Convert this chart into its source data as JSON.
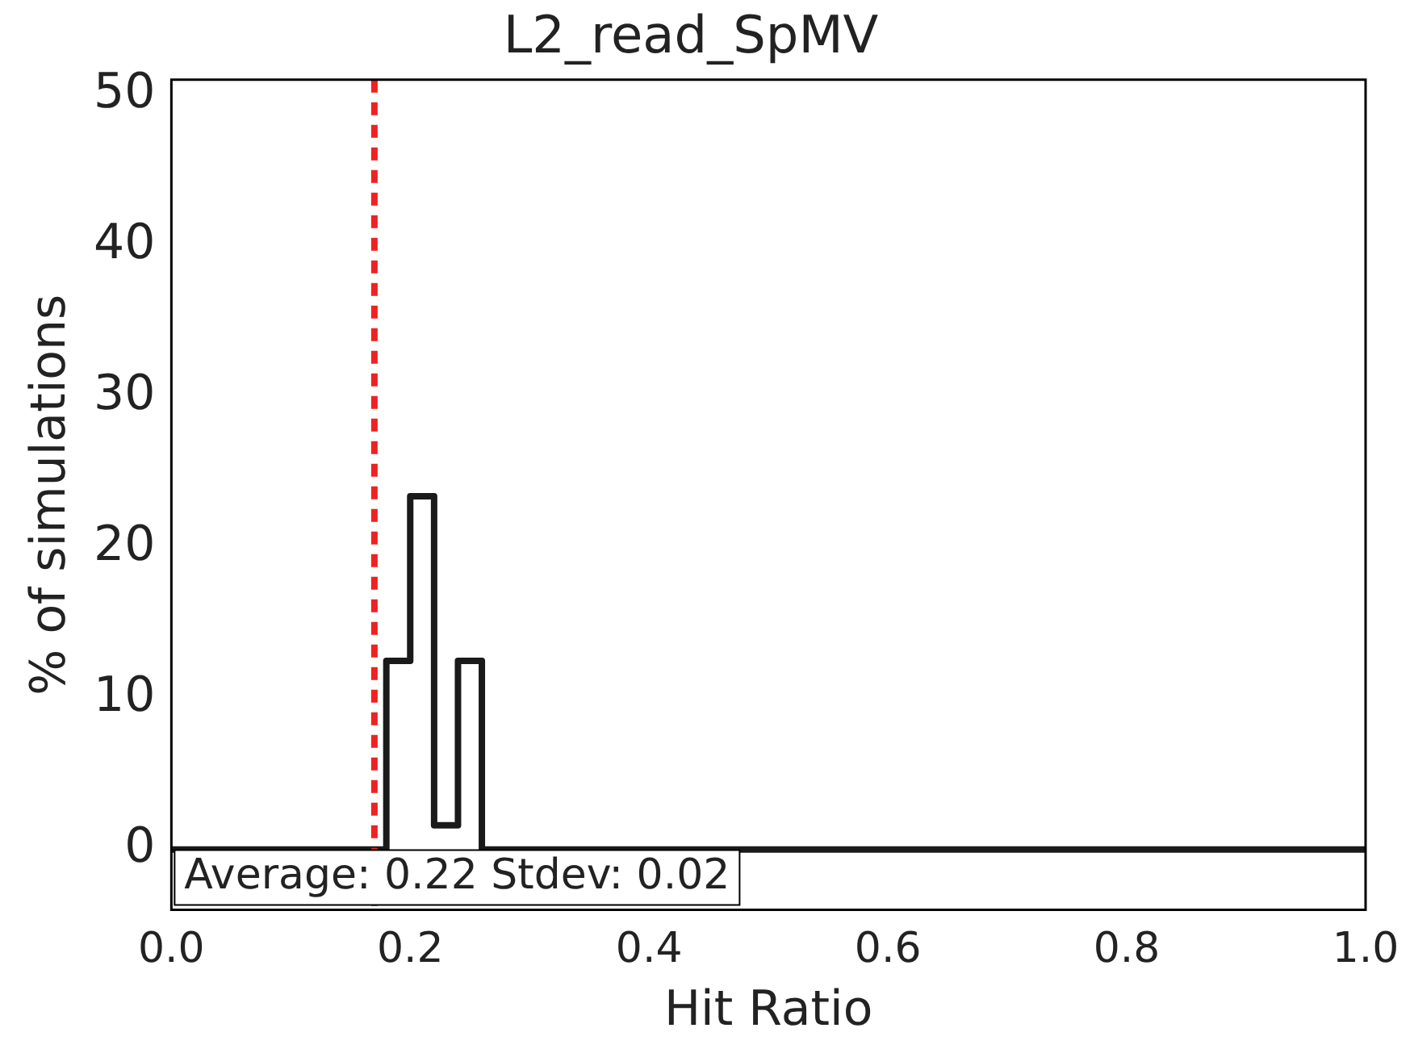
{
  "chart_data": {
    "type": "histogram",
    "title": "L2_read_SpMV",
    "xlabel": "Hit Ratio",
    "ylabel": "% of simulations",
    "bins": [
      0,
      0.18,
      0.2,
      0.22,
      0.24,
      0.26,
      1.0
    ],
    "values": [
      0,
      12.5,
      23.4,
      1.6,
      12.5,
      0
    ],
    "color": "#1a1a1a",
    "xlim": [
      0,
      1.0
    ],
    "xticks": [
      {
        "value": 0,
        "label": "0.0"
      },
      {
        "value": 0.2,
        "label": "0.2"
      },
      {
        "value": 0.4,
        "label": "0.4"
      },
      {
        "value": 0.6,
        "label": "0.6"
      },
      {
        "value": 0.8,
        "label": "0.8"
      },
      {
        "value": 1.0,
        "label": "1.0"
      }
    ],
    "ylim": [
      -4,
      51
    ],
    "yticks": [
      0,
      10,
      20,
      30,
      40,
      50
    ],
    "ref_lines": [
      {
        "axis": "x",
        "value": 0.17,
        "color": "#ee2222",
        "line_style": "dashed"
      }
    ],
    "annotations": [
      "Average: 0.22 Stdev: 0.02"
    ],
    "grid": false,
    "legend": false
  }
}
